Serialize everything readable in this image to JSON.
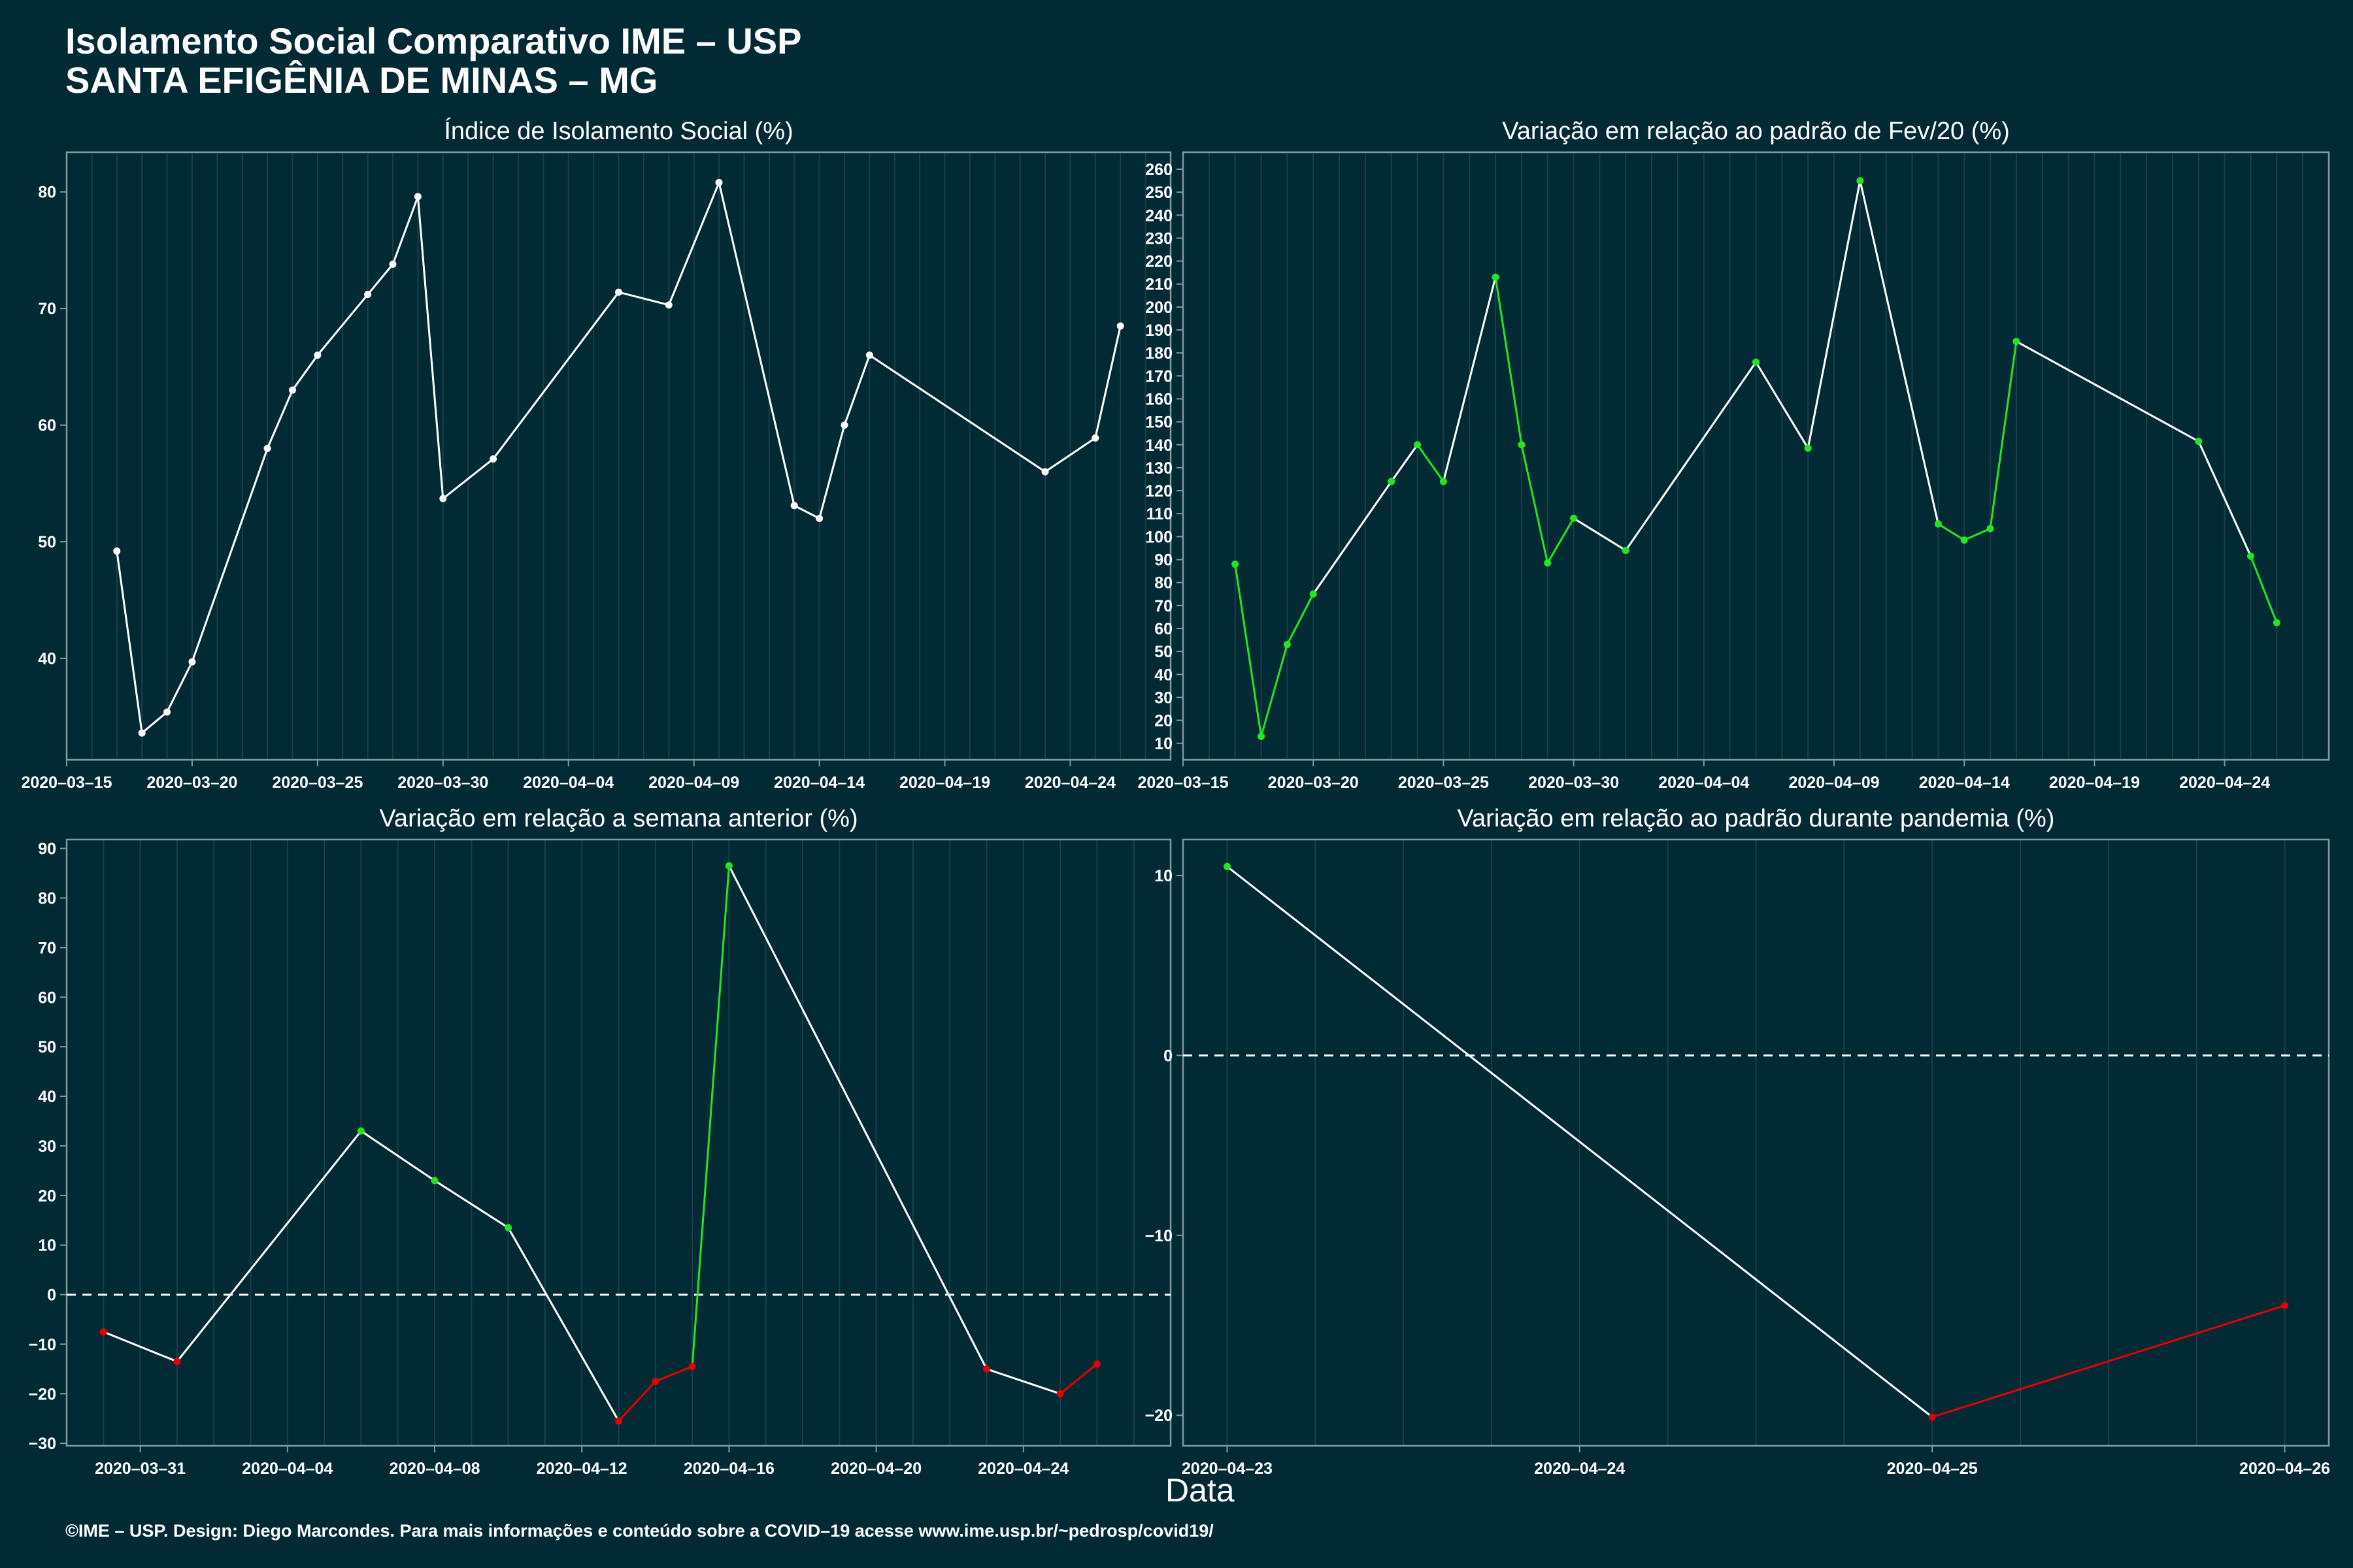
{
  "header": {
    "title_line1": "Isolamento Social Comparativo IME – USP",
    "title_line2": "SANTA EFIGÊNIA DE MINAS – MG"
  },
  "xlabel": "Data",
  "footer": "©IME – USP. Design: Diego Marcondes. Para mais informações e conteúdo sobre a COVID–19 acesse www.ime.usp.br/~pedrosp/covid19/",
  "colors": {
    "background": "#022a35",
    "line": "#ffffff",
    "positive": "#22e622",
    "negative": "#e60000",
    "grid": "#1a3f4a",
    "axis": "#7f9aa1"
  },
  "chart_data": [
    {
      "type": "line",
      "title": "Índice de Isolamento Social (%)",
      "xlim": [
        "2020-03-15",
        "2020-04-28"
      ],
      "ylim": [
        31.3,
        83.4
      ],
      "xticks": [
        "2020-03-15",
        "2020-03-20",
        "2020-03-25",
        "2020-03-30",
        "2020-04-04",
        "2020-04-09",
        "2020-04-14",
        "2020-04-19",
        "2020-04-24"
      ],
      "yticks": [
        40,
        50,
        60,
        70,
        80
      ],
      "zero_line": false,
      "points": [
        {
          "x": "2020-03-17",
          "y": 49.2
        },
        {
          "x": "2020-03-18",
          "y": 33.6
        },
        {
          "x": "2020-03-19",
          "y": 35.4
        },
        {
          "x": "2020-03-20",
          "y": 39.7
        },
        {
          "x": "2020-03-23",
          "y": 58.0
        },
        {
          "x": "2020-03-24",
          "y": 63.0
        },
        {
          "x": "2020-03-25",
          "y": 66.0
        },
        {
          "x": "2020-03-27",
          "y": 71.2
        },
        {
          "x": "2020-03-28",
          "y": 73.8
        },
        {
          "x": "2020-03-29",
          "y": 79.6
        },
        {
          "x": "2020-03-30",
          "y": 53.7
        },
        {
          "x": "2020-04-01",
          "y": 57.1
        },
        {
          "x": "2020-04-06",
          "y": 71.4
        },
        {
          "x": "2020-04-08",
          "y": 70.3
        },
        {
          "x": "2020-04-10",
          "y": 80.8
        },
        {
          "x": "2020-04-13",
          "y": 53.1
        },
        {
          "x": "2020-04-14",
          "y": 52.0
        },
        {
          "x": "2020-04-15",
          "y": 60.0
        },
        {
          "x": "2020-04-16",
          "y": 66.0
        },
        {
          "x": "2020-04-23",
          "y": 56.0
        },
        {
          "x": "2020-04-25",
          "y": 58.9
        },
        {
          "x": "2020-04-26",
          "y": 68.5
        }
      ],
      "segment_colors": [
        "white",
        "white",
        "white",
        "white",
        "white",
        "white",
        "white",
        "white",
        "white",
        "white",
        "white",
        "white",
        "white",
        "white",
        "white",
        "white",
        "white",
        "white",
        "white",
        "white",
        "white"
      ]
    },
    {
      "type": "line",
      "title": "Variação em relação ao padrão de Fev/20 (%)",
      "xlim": [
        "2020-03-15",
        "2020-04-28"
      ],
      "ylim": [
        2.8,
        267.4
      ],
      "xticks": [
        "2020-03-15",
        "2020-03-20",
        "2020-03-25",
        "2020-03-30",
        "2020-04-04",
        "2020-04-09",
        "2020-04-14",
        "2020-04-19",
        "2020-04-24"
      ],
      "yticks": [
        10,
        20,
        30,
        40,
        50,
        60,
        70,
        80,
        90,
        100,
        110,
        120,
        130,
        140,
        150,
        160,
        170,
        180,
        190,
        200,
        210,
        220,
        230,
        240,
        250,
        260
      ],
      "zero_line": false,
      "points": [
        {
          "x": "2020-03-17",
          "y": 88.0,
          "c": "positive"
        },
        {
          "x": "2020-03-18",
          "y": 13.0,
          "c": "positive"
        },
        {
          "x": "2020-03-19",
          "y": 53.0,
          "c": "positive"
        },
        {
          "x": "2020-03-20",
          "y": 75.0,
          "c": "positive"
        },
        {
          "x": "2020-03-23",
          "y": 124.0,
          "c": "positive"
        },
        {
          "x": "2020-03-24",
          "y": 140.0,
          "c": "positive"
        },
        {
          "x": "2020-03-25",
          "y": 124.0,
          "c": "positive"
        },
        {
          "x": "2020-03-27",
          "y": 213.0,
          "c": "positive"
        },
        {
          "x": "2020-03-28",
          "y": 140.0,
          "c": "positive"
        },
        {
          "x": "2020-03-29",
          "y": 88.5,
          "c": "positive"
        },
        {
          "x": "2020-03-30",
          "y": 108.0,
          "c": "positive"
        },
        {
          "x": "2020-04-01",
          "y": 94.0,
          "c": "positive"
        },
        {
          "x": "2020-04-06",
          "y": 176.0,
          "c": "positive"
        },
        {
          "x": "2020-04-08",
          "y": 138.5,
          "c": "positive"
        },
        {
          "x": "2020-04-10",
          "y": 255.0,
          "c": "positive"
        },
        {
          "x": "2020-04-13",
          "y": 105.5,
          "c": "positive"
        },
        {
          "x": "2020-04-14",
          "y": 98.5,
          "c": "positive"
        },
        {
          "x": "2020-04-15",
          "y": 103.5,
          "c": "positive"
        },
        {
          "x": "2020-04-16",
          "y": 185.0,
          "c": "positive"
        },
        {
          "x": "2020-04-23",
          "y": 141.5,
          "c": "positive"
        },
        {
          "x": "2020-04-25",
          "y": 91.5,
          "c": "positive"
        },
        {
          "x": "2020-04-26",
          "y": 62.5,
          "c": "positive"
        }
      ],
      "segment_colors": [
        "positive",
        "positive",
        "positive",
        "white",
        "white",
        "positive",
        "white",
        "positive",
        "positive",
        "positive",
        "white",
        "white",
        "white",
        "white",
        "white",
        "positive",
        "positive",
        "positive",
        "white",
        "white",
        "positive"
      ]
    },
    {
      "type": "line",
      "title": "Variação em relação a semana anterior (%)",
      "xlim": [
        "2020-03-29",
        "2020-04-28"
      ],
      "ylim": [
        -30.5,
        91.8
      ],
      "xticks": [
        "2020-03-31",
        "2020-04-04",
        "2020-04-08",
        "2020-04-12",
        "2020-04-16",
        "2020-04-20",
        "2020-04-24"
      ],
      "yticks": [
        -30,
        -20,
        -10,
        0,
        10,
        20,
        30,
        40,
        50,
        60,
        70,
        80,
        90
      ],
      "zero_line": true,
      "points": [
        {
          "x": "2020-03-30",
          "y": -7.5,
          "c": "negative"
        },
        {
          "x": "2020-04-01",
          "y": -13.5,
          "c": "negative"
        },
        {
          "x": "2020-04-06",
          "y": 33.0,
          "c": "positive"
        },
        {
          "x": "2020-04-08",
          "y": 23.0,
          "c": "positive"
        },
        {
          "x": "2020-04-10",
          "y": 13.5,
          "c": "positive"
        },
        {
          "x": "2020-04-13",
          "y": -25.5,
          "c": "negative"
        },
        {
          "x": "2020-04-14",
          "y": -17.5,
          "c": "negative"
        },
        {
          "x": "2020-04-15",
          "y": -14.5,
          "c": "negative"
        },
        {
          "x": "2020-04-16",
          "y": 86.5,
          "c": "positive"
        },
        {
          "x": "2020-04-23",
          "y": -15.0,
          "c": "negative"
        },
        {
          "x": "2020-04-25",
          "y": -20.0,
          "c": "negative"
        },
        {
          "x": "2020-04-26",
          "y": -14.0,
          "c": "negative"
        }
      ],
      "segment_colors": [
        "white",
        "white",
        "white",
        "white",
        "white",
        "negative",
        "negative",
        "positive",
        "white",
        "white",
        "negative"
      ]
    },
    {
      "type": "line",
      "title": "Variação em relação ao padrão durante pandemia (%)",
      "xlim": [
        "2020-04-22.875",
        "2020-04-26.125"
      ],
      "ylim": [
        -21.7,
        12.0
      ],
      "xticks": [
        "2020-04-23",
        "2020-04-24",
        "2020-04-25",
        "2020-04-26"
      ],
      "yticks": [
        -20,
        -10,
        0,
        10
      ],
      "zero_line": true,
      "points": [
        {
          "x": "2020-04-23",
          "y": 10.5,
          "c": "positive"
        },
        {
          "x": "2020-04-25",
          "y": -20.1,
          "c": "negative"
        },
        {
          "x": "2020-04-26",
          "y": -13.9,
          "c": "negative"
        }
      ],
      "segment_colors": [
        "white",
        "negative"
      ]
    }
  ]
}
